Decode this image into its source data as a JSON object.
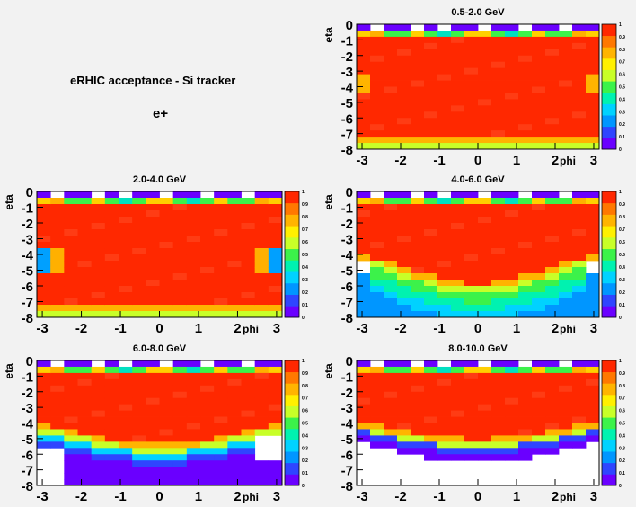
{
  "heading": {
    "title": "eRHIC acceptance - Si tracker",
    "species": "e+"
  },
  "chart_data": {
    "type": "heatmap",
    "colorscale": [
      "#6a00ff",
      "#2f45ff",
      "#0096ff",
      "#00d2ff",
      "#00f2b0",
      "#3cf24a",
      "#c8ff28",
      "#fff000",
      "#ffb400",
      "#ff7800",
      "#ff2800"
    ],
    "colorbar": {
      "range": [
        0,
        1
      ],
      "ticks": [
        "0",
        "0.1",
        "0.2",
        "0.3",
        "0.4",
        "0.5",
        "0.6",
        "0.7",
        "0.8",
        "0.9",
        "1"
      ]
    },
    "xlabel": "phi",
    "ylabel": "eta",
    "xlim": [
      -3.14,
      3.14
    ],
    "ylim": [
      -8,
      0
    ],
    "xticks": [
      "-3",
      "-2",
      "-1",
      "0",
      "1",
      "2",
      "3"
    ],
    "yticks": [
      "0",
      "-1",
      "-2",
      "-3",
      "-4",
      "-5",
      "-6",
      "-7",
      "-8"
    ],
    "nx": 18,
    "ny": 20,
    "panels": [
      {
        "title": "0.5-2.0 GeV",
        "cutoff": [
          8,
          8,
          8,
          8,
          8,
          8,
          8,
          8,
          8,
          8,
          8,
          8,
          8,
          8,
          8,
          8,
          8,
          8
        ],
        "edge": "none",
        "mid_dip": false
      },
      {
        "title": "2.0-4.0 GeV",
        "cutoff": [
          8,
          8,
          8,
          8,
          8,
          8,
          8,
          8,
          8,
          8,
          8,
          8,
          8,
          8,
          8,
          8,
          8,
          8
        ],
        "edge": "mild",
        "mid_dip": false
      },
      {
        "title": "4.0-6.0 GeV",
        "cutoff": [
          4.6,
          4.9,
          5.2,
          5.5,
          5.8,
          6.0,
          6.2,
          6.4,
          6.5,
          6.5,
          6.4,
          6.2,
          6.0,
          5.8,
          5.5,
          5.2,
          4.9,
          4.6
        ],
        "edge": "strong",
        "mid_dip": true,
        "low_fill": "greenblue"
      },
      {
        "title": "6.0-8.0 GeV",
        "cutoff": [
          4.7,
          4.9,
          5.1,
          5.3,
          5.5,
          5.7,
          5.8,
          5.9,
          6.0,
          6.0,
          5.9,
          5.8,
          5.7,
          5.5,
          5.3,
          5.1,
          4.9,
          4.7
        ],
        "edge": "none",
        "mid_dip": false,
        "low_fill": "violet"
      },
      {
        "title": "8.0-10.0 GeV",
        "cutoff": [
          4.6,
          4.8,
          5.0,
          5.1,
          5.3,
          5.4,
          5.5,
          5.6,
          5.7,
          5.7,
          5.6,
          5.5,
          5.4,
          5.3,
          5.1,
          5.0,
          4.8,
          4.6
        ],
        "edge": "none",
        "mid_dip": false,
        "low_fill": "blank"
      }
    ]
  }
}
